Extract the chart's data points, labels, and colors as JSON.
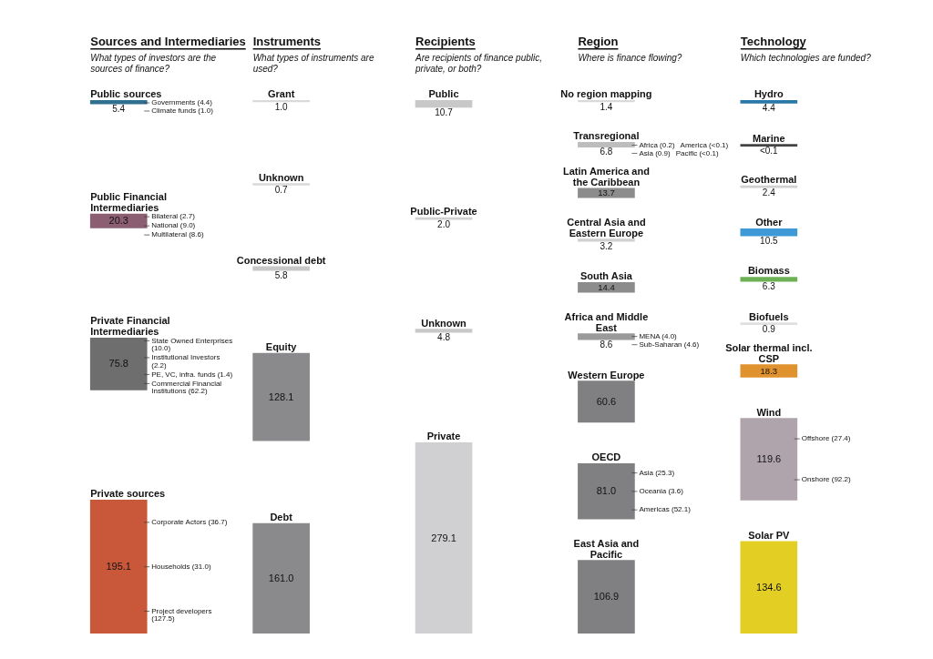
{
  "chart_data": {
    "type": "other",
    "legend": false,
    "categories": [
      "Public sources",
      "Public Financial Intermediaries",
      "Private Financial Intermediaries",
      "Private sources",
      "Grant",
      "Unknown",
      "Concessional debt",
      "Equity",
      "Debt",
      "Public",
      "Public-Private",
      "Unknown",
      "Private",
      "No region mapping",
      "Transregional",
      "Latin America and the Caribbean",
      "Central Asia and Eastern Europe",
      "South Asia",
      "Africa and Middle East",
      "Western Europe",
      "OECD",
      "East Asia and Pacific",
      "Hydro",
      "Marine",
      "Geothermal",
      "Other",
      "Biomass",
      "Biofuels",
      "Solar thermal incl. CSP",
      "Wind",
      "Solar PV"
    ],
    "series": [
      {
        "values": [
          5.4,
          20.3,
          75.8,
          195.1,
          null,
          null,
          null,
          null,
          null,
          null,
          null,
          null,
          null,
          null,
          null,
          null,
          null,
          null,
          null,
          null,
          null,
          null,
          null,
          null,
          null,
          null,
          null,
          null,
          null,
          null,
          null
        ],
        "value_labels": [
          "5.4",
          "20.3",
          "75.8",
          "195.1",
          null,
          null,
          null,
          null,
          null,
          null,
          null,
          null,
          null,
          null,
          null,
          null,
          null,
          null,
          null,
          null,
          null,
          null,
          null,
          null,
          null,
          null,
          null,
          null,
          null,
          null,
          null
        ],
        "colors": [
          "#2f6f8f",
          "#8c5e72",
          "#6e6e6e",
          "#c9583a",
          null,
          null,
          null,
          null,
          null,
          null,
          null,
          null,
          null,
          null,
          null,
          null,
          null,
          null,
          null,
          null,
          null,
          null,
          null,
          null,
          null,
          null,
          null,
          null,
          null,
          null,
          null
        ]
      },
      {
        "values": [
          null,
          null,
          null,
          null,
          1.0,
          0.7,
          5.8,
          128.1,
          161.0,
          null,
          null,
          null,
          null,
          null,
          null,
          null,
          null,
          null,
          null,
          null,
          null,
          null,
          null,
          null,
          null,
          null,
          null,
          null,
          null,
          null,
          null
        ],
        "value_labels": [
          null,
          null,
          null,
          null,
          "1.0",
          "0.7",
          "5.8",
          "128.1",
          "161.0",
          null,
          null,
          null,
          null,
          null,
          null,
          null,
          null,
          null,
          null,
          null,
          null,
          null,
          null,
          null,
          null,
          null,
          null,
          null,
          null,
          null,
          null
        ],
        "colors": [
          null,
          null,
          null,
          null,
          "#d9d9d9",
          "#d9d9d9",
          "#c8c8c8",
          "#8a8a8c",
          "#8a8a8c",
          null,
          null,
          null,
          null,
          null,
          null,
          null,
          null,
          null,
          null,
          null,
          null,
          null,
          null,
          null,
          null,
          null,
          null,
          null,
          null,
          null,
          null
        ]
      },
      {
        "values": [
          null,
          null,
          null,
          null,
          null,
          null,
          null,
          null,
          null,
          10.7,
          2.0,
          4.8,
          279.1,
          null,
          null,
          null,
          null,
          null,
          null,
          null,
          null,
          null,
          null,
          null,
          null,
          null,
          null,
          null,
          null,
          null,
          null
        ],
        "value_labels": [
          null,
          null,
          null,
          null,
          null,
          null,
          null,
          null,
          null,
          "10.7",
          "2.0",
          "4.8",
          "279.1",
          null,
          null,
          null,
          null,
          null,
          null,
          null,
          null,
          null,
          null,
          null,
          null,
          null,
          null,
          null,
          null,
          null,
          null
        ],
        "colors": [
          null,
          null,
          null,
          null,
          null,
          null,
          null,
          null,
          null,
          "#c8c8c8",
          "#d0d0d0",
          "#c8c8c8",
          "#d0d0d2",
          null,
          null,
          null,
          null,
          null,
          null,
          null,
          null,
          null,
          null,
          null,
          null,
          null,
          null,
          null,
          null,
          null,
          null
        ]
      },
      {
        "values": [
          null,
          null,
          null,
          null,
          null,
          null,
          null,
          null,
          null,
          null,
          null,
          null,
          null,
          1.4,
          6.8,
          13.7,
          3.2,
          14.4,
          8.6,
          60.6,
          81.0,
          106.9,
          null,
          null,
          null,
          null,
          null,
          null,
          null,
          null,
          null
        ],
        "value_labels": [
          null,
          null,
          null,
          null,
          null,
          null,
          null,
          null,
          null,
          null,
          null,
          null,
          null,
          "1.4",
          "6.8",
          "13.7",
          "3.2",
          "14.4",
          "8.6",
          "60.6",
          "81.0",
          "106.9",
          null,
          null,
          null,
          null,
          null,
          null,
          null,
          null,
          null
        ],
        "colors": [
          null,
          null,
          null,
          null,
          null,
          null,
          null,
          null,
          null,
          null,
          null,
          null,
          null,
          "#d9d9d9",
          "#bdbdbd",
          "#8c8c8c",
          "#d0d0d0",
          "#8c8c8c",
          "#9a9a9a",
          "#808083",
          "#808083",
          "#808083",
          null,
          null,
          null,
          null,
          null,
          null,
          null,
          null,
          null
        ]
      },
      {
        "values": [
          null,
          null,
          null,
          null,
          null,
          null,
          null,
          null,
          null,
          null,
          null,
          null,
          null,
          null,
          null,
          null,
          null,
          null,
          null,
          null,
          null,
          null,
          4.4,
          0.1,
          2.4,
          10.5,
          6.3,
          0.9,
          18.3,
          119.6,
          134.6
        ],
        "value_labels": [
          null,
          null,
          null,
          null,
          null,
          null,
          null,
          null,
          null,
          null,
          null,
          null,
          null,
          null,
          null,
          null,
          null,
          null,
          null,
          null,
          null,
          null,
          "4.4",
          "<0.1",
          "2.4",
          "10.5",
          "6.3",
          "0.9",
          "18.3",
          "119.6",
          "134.6"
        ],
        "colors": [
          null,
          null,
          null,
          null,
          null,
          null,
          null,
          null,
          null,
          null,
          null,
          null,
          null,
          null,
          null,
          null,
          null,
          null,
          null,
          null,
          null,
          null,
          "#2a78a8",
          "#444444",
          "#d0d0d0",
          "#3d9ad6",
          "#6db056",
          "#e0e0e0",
          "#e0922e",
          "#b0a4ac",
          "#e3cf24"
        ]
      }
    ],
    "annotations": [
      "Sources and Intermediaries",
      "Instruments",
      "Recipients",
      "Region",
      "Technology",
      "What types of investors are the sources of finance?",
      "What types of instruments are used?",
      "Are recipients of finance public, private, or both?",
      "Where is finance flowing?",
      "Which technologies are funded?",
      {
        "text": "Governments (4.4)",
        "x": "Public sources"
      },
      {
        "text": "Climate funds (1.0)",
        "x": "Public sources"
      },
      {
        "text": "Bilateral (2.7)",
        "x": "Public Financial Intermediaries"
      },
      {
        "text": "National (9.0)",
        "x": "Public Financial Intermediaries"
      },
      {
        "text": "Multilateral (8.6)",
        "x": "Public Financial Intermediaries"
      },
      {
        "text": "State Owned Enterprises (10.0)",
        "x": "Private Financial Intermediaries"
      },
      {
        "text": "Institutional Investors (2.2)",
        "x": "Private Financial Intermediaries"
      },
      {
        "text": "PE, VC, infra. funds (1.4)",
        "x": "Private Financial Intermediaries"
      },
      {
        "text": "Commercial Financial Institutions (62.2)",
        "x": "Private Financial Intermediaries"
      },
      {
        "text": "Corporate Actors (36.7)",
        "x": "Private sources"
      },
      {
        "text": "Households (31.0)",
        "x": "Private sources"
      },
      {
        "text": "Project developers (127.5)",
        "x": "Private sources"
      },
      {
        "text": "Africa (0.2)",
        "x": "Transregional"
      },
      {
        "text": "America (<0.1)",
        "x": "Transregional"
      },
      {
        "text": "Asia (0.9)",
        "x": "Transregional"
      },
      {
        "text": "Pacific (<0.1)",
        "x": "Transregional"
      },
      {
        "text": "MENA (4.0)",
        "x": "Africa and Middle East"
      },
      {
        "text": "Sub-Saharan (4.6)",
        "x": "Africa and Middle East"
      },
      {
        "text": "Asia (25.3)",
        "x": "OECD"
      },
      {
        "text": "Oceania (3.6)",
        "x": "OECD"
      },
      {
        "text": "Americas (52.1)",
        "x": "OECD"
      },
      {
        "text": "Offshore (27.4)",
        "x": "Wind"
      },
      {
        "text": "Onshore (92.2)",
        "x": "Wind"
      }
    ]
  }
}
